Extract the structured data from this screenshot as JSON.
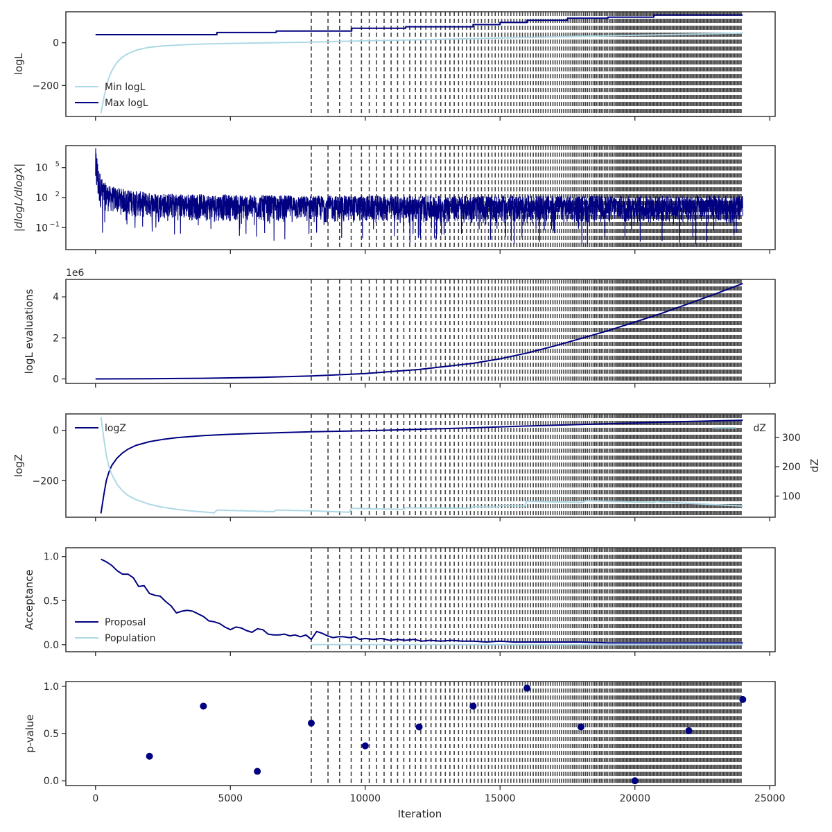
{
  "colors": {
    "dark": "#000080",
    "light": "#add8e6",
    "axis": "#262626",
    "vline": "#404040"
  },
  "chart_data": {
    "type": "line",
    "xlabel": "Iteration",
    "xlim": [
      -1100,
      25200
    ],
    "x_ticks": [
      0,
      5000,
      10000,
      15000,
      20000,
      25000
    ],
    "x_tick_labels": [
      "0",
      "5000",
      "10000",
      "15000",
      "20000",
      "25000"
    ],
    "dashed_vertical_lines": {
      "note": "",
      "positions": [
        8000,
        8620,
        9050,
        9480,
        9860,
        10150,
        10420,
        10700,
        10960,
        11200,
        11430,
        11650,
        11860,
        12060,
        12250,
        12440,
        12620,
        12800,
        12970,
        13140,
        13300,
        13460,
        13610,
        13760,
        13900,
        14040,
        14180,
        14310,
        14440,
        14570,
        14700,
        14820,
        14940,
        15060,
        15180,
        15290,
        15400,
        15510,
        15620,
        15730,
        15830,
        15930,
        16030,
        16130,
        16230,
        16330,
        16420,
        16510,
        16600,
        16690,
        16780,
        16870,
        16960,
        17040,
        17120,
        17200,
        17280,
        17360,
        17440,
        17520,
        17600,
        17680,
        17750,
        17820,
        17890,
        17960,
        18030,
        18100,
        18170,
        18240,
        18310,
        18380,
        18450,
        18510,
        18570,
        18630,
        18690,
        18750,
        18810,
        18870,
        18930,
        18990,
        19050,
        19110,
        19170,
        19230,
        19290,
        19340,
        19390,
        19440,
        19490,
        19540,
        19590,
        19640,
        19690,
        19740,
        19790,
        19840,
        19890,
        19940,
        19990,
        20040,
        20090,
        20140,
        20190,
        20240,
        20290,
        20340,
        20390,
        20440,
        20490,
        20540,
        20590,
        20640,
        20690,
        20740,
        20790,
        20840,
        20890,
        20940,
        20990,
        21040,
        21090,
        21140,
        21190,
        21240,
        21290,
        21340,
        21390,
        21440,
        21490,
        21540,
        21590,
        21640,
        21690,
        21740,
        21790,
        21840,
        21890,
        21940,
        21990,
        22040,
        22090,
        22140,
        22190,
        22240,
        22290,
        22340,
        22390,
        22440,
        22490,
        22540,
        22590,
        22640,
        22690,
        22740,
        22790,
        22840,
        22890,
        22940,
        22990,
        23040,
        23090,
        23140,
        23190,
        23240,
        23290,
        23340,
        23390,
        23440,
        23490,
        23540,
        23590,
        23640,
        23690,
        23740,
        23790,
        23840,
        23890,
        23940
      ]
    },
    "panels": [
      {
        "id": "logl",
        "ylabel": "logL",
        "ylim": [
          -345,
          145
        ],
        "y_ticks": [
          -200,
          0
        ],
        "y_tick_labels": [
          "−200",
          "0"
        ],
        "legend": {
          "placement": "lower-left",
          "entries": [
            {
              "label": "Min logL",
              "color": "light"
            },
            {
              "label": "Max logL",
              "color": "dark"
            }
          ]
        },
        "series": [
          {
            "name": "Min logL",
            "color": "light",
            "step": false,
            "x": [
              200,
              300,
              400,
              500,
              600,
              700,
              800,
              900,
              1000,
              1200,
              1400,
              1600,
              1800,
              2000,
              2500,
              3000,
              3500,
              4000,
              5000,
              6000,
              7000,
              8000,
              9000,
              10000,
              12000,
              14000,
              16000,
              18000,
              20000,
              22000,
              24000
            ],
            "y": [
              -330,
              -262,
              -205,
              -162,
              -132,
              -110,
              -92,
              -78,
              -67,
              -51,
              -40,
              -32,
              -26,
              -21,
              -15,
              -11,
              -8,
              -6,
              -3,
              -1,
              1,
              3,
              6,
              9,
              14,
              19,
              25,
              30,
              35,
              40,
              45
            ]
          },
          {
            "name": "Max logL",
            "color": "dark",
            "step": true,
            "x": [
              0,
              4500,
              4500,
              6700,
              6700,
              9500,
              9500,
              11500,
              11500,
              14000,
              14000,
              15000,
              15000,
              16000,
              16000,
              17500,
              17500,
              19000,
              19000,
              20700,
              20700,
              24000
            ],
            "y": [
              38,
              38,
              48,
              48,
              55,
              55,
              68,
              68,
              75,
              75,
              85,
              85,
              95,
              95,
              105,
              105,
              115,
              115,
              120,
              120,
              130,
              130
            ]
          }
        ]
      },
      {
        "id": "dlogl",
        "ylabel": "|dlogL/dlogX|",
        "ylim_log10": [
          -3.2,
          7.2
        ],
        "y_ticks_log10": [
          -1,
          2,
          5
        ],
        "y_tick_labels": [
          {
            "base": "10",
            "exp": "−1"
          },
          {
            "base": "10",
            "exp": "2"
          },
          {
            "base": "10",
            "exp": "5"
          }
        ],
        "series": [
          {
            "name": "",
            "color": "dark",
            "envelope": {
              "note": "",
              "x": [
                0,
                50,
                100,
                200,
                300,
                500,
                800,
                1200,
                2000,
                3000,
                5000,
                8000,
                12000,
                16000,
                20000,
                24000
              ],
              "upper_log10": [
                7.0,
                6.6,
                5.2,
                4.2,
                3.6,
                3.2,
                3.0,
                2.8,
                2.5,
                2.4,
                2.3,
                2.2,
                2.2,
                2.2,
                2.2,
                2.2
              ],
              "lower_log10": [
                2.0,
                1.5,
                1.0,
                0.9,
                0.7,
                0.5,
                0.3,
                0.1,
                -0.1,
                -0.3,
                -0.4,
                -0.5,
                -0.6,
                -0.6,
                -0.6,
                -0.6
              ],
              "min_spike_log10": -2.8
            }
          }
        ]
      },
      {
        "id": "evals",
        "ylabel": "logL evaluations",
        "offset_text": "1e6",
        "ylim": [
          -0.22,
          4.85
        ],
        "y_ticks": [
          0,
          2,
          4
        ],
        "y_tick_labels": [
          "0",
          "2",
          "4"
        ],
        "series": [
          {
            "name": "",
            "color": "dark",
            "x": [
              0,
              2000,
              4000,
              6000,
              8000,
              10000,
              12000,
              14000,
              15000,
              16000,
              17000,
              18000,
              19000,
              20000,
              21000,
              22000,
              23000,
              24000
            ],
            "y": [
              0.0,
              0.01,
              0.03,
              0.07,
              0.14,
              0.26,
              0.46,
              0.76,
              0.98,
              1.26,
              1.6,
              1.97,
              2.35,
              2.77,
              3.2,
              3.67,
              4.15,
              4.65
            ]
          }
        ]
      },
      {
        "id": "logz",
        "ylabel": "logZ",
        "ylim": [
          -345,
          65
        ],
        "y_ticks": [
          -200,
          0
        ],
        "y_tick_labels": [
          "−200",
          "0"
        ],
        "ylabel_right": "dZ",
        "ylim_right": [
          28,
          380
        ],
        "y_ticks_right": [
          100,
          200,
          300
        ],
        "y_tick_labels_right": [
          "100",
          "200",
          "300"
        ],
        "legend_left": {
          "placement": "upper-left",
          "entries": [
            {
              "label": "logZ",
              "color": "dark"
            }
          ]
        },
        "legend_right": {
          "placement": "upper-right",
          "entries": [
            {
              "label": "dZ",
              "color": "light"
            }
          ]
        },
        "series": [
          {
            "name": "logZ",
            "color": "dark",
            "axis": "left",
            "x": [
              200,
              300,
              400,
              500,
              600,
              800,
              1000,
              1200,
              1500,
              2000,
              2500,
              3000,
              4000,
              5000,
              6000,
              7000,
              8000,
              10000,
              12000,
              14000,
              16000,
              18000,
              20000,
              22000,
              24000
            ],
            "y": [
              -330,
              -260,
              -200,
              -165,
              -140,
              -110,
              -90,
              -75,
              -60,
              -45,
              -36,
              -29,
              -21,
              -16,
              -12,
              -9,
              -6,
              -2,
              4,
              10,
              17,
              23,
              29,
              35,
              40
            ]
          },
          {
            "name": "dZ",
            "color": "light",
            "axis": "right",
            "x": [
              200,
              300,
              400,
              500,
              600,
              800,
              1000,
              1200,
              1500,
              2000,
              2500,
              3000,
              3500,
              4000,
              4400,
              4500,
              4600,
              6600,
              6700,
              6800,
              8000,
              9400,
              9500,
              9600,
              11400,
              11500,
              11600,
              13900,
              14000,
              14100,
              14900,
              15000,
              15100,
              15900,
              16000,
              16100,
              18000,
              18200,
              19900,
              20000,
              20100,
              20700,
              20800,
              21000,
              24000
            ],
            "y": [
              370,
              300,
              240,
              200,
              175,
              140,
              118,
              102,
              88,
              72,
              62,
              55,
              50,
              46,
              43,
              52,
              52,
              47,
              52,
              52,
              50,
              45,
              58,
              58,
              55,
              60,
              60,
              58,
              64,
              64,
              62,
              68,
              68,
              66,
              82,
              82,
              78,
              84,
              80,
              78,
              80,
              78,
              82,
              80,
              66
            ]
          }
        ]
      },
      {
        "id": "acceptance",
        "ylabel": "Acceptance",
        "ylim": [
          -0.08,
          1.1
        ],
        "y_ticks": [
          0,
          0.5,
          1
        ],
        "y_tick_labels": [
          "0.0",
          "0.5",
          "1.0"
        ],
        "legend": {
          "placement": "lower-left",
          "entries": [
            {
              "label": "Proposal",
              "color": "dark"
            },
            {
              "label": "Population",
              "color": "light"
            }
          ]
        },
        "series": [
          {
            "name": "Proposal",
            "color": "dark",
            "x": [
              200,
              400,
              600,
              800,
              1000,
              1200,
              1400,
              1600,
              1800,
              2000,
              2200,
              2400,
              2600,
              2800,
              3000,
              3200,
              3400,
              3600,
              3800,
              4000,
              4200,
              4400,
              4600,
              4800,
              5000,
              5200,
              5400,
              5600,
              5800,
              6000,
              6200,
              6400,
              6600,
              6800,
              7000,
              7200,
              7400,
              7600,
              7800,
              8000,
              8200,
              8400,
              8600,
              8800,
              9000,
              9200,
              9400,
              9600,
              9800,
              10000,
              10300,
              10600,
              10900,
              11200,
              11500,
              11800,
              12100,
              12400,
              12800,
              13200,
              13600,
              14000,
              14500,
              15000,
              15500,
              16000,
              17000,
              18000,
              19000,
              20000,
              21000,
              22000,
              23000,
              24000
            ],
            "y": [
              0.97,
              0.94,
              0.9,
              0.84,
              0.8,
              0.8,
              0.76,
              0.66,
              0.67,
              0.58,
              0.56,
              0.55,
              0.49,
              0.44,
              0.36,
              0.38,
              0.39,
              0.38,
              0.35,
              0.32,
              0.27,
              0.26,
              0.24,
              0.2,
              0.17,
              0.2,
              0.19,
              0.16,
              0.14,
              0.18,
              0.17,
              0.12,
              0.11,
              0.11,
              0.12,
              0.1,
              0.11,
              0.09,
              0.11,
              0.06,
              0.15,
              0.13,
              0.1,
              0.08,
              0.09,
              0.09,
              0.08,
              0.09,
              0.06,
              0.07,
              0.06,
              0.07,
              0.05,
              0.06,
              0.05,
              0.06,
              0.04,
              0.05,
              0.04,
              0.05,
              0.04,
              0.04,
              0.03,
              0.04,
              0.03,
              0.03,
              0.03,
              0.03,
              0.02,
              0.02,
              0.02,
              0.02,
              0.02,
              0.02
            ]
          },
          {
            "name": "Population",
            "color": "light",
            "x": [
              8000,
              24000
            ],
            "y": [
              0.0,
              0.0
            ]
          }
        ]
      },
      {
        "id": "pvalue",
        "ylabel": "p-value",
        "ylim": [
          -0.05,
          1.05
        ],
        "y_ticks": [
          0,
          0.5,
          1
        ],
        "y_tick_labels": [
          "0.0",
          "0.5",
          "1.0"
        ],
        "series": [
          {
            "name": "",
            "type": "scatter",
            "color": "dark",
            "x": [
              2000,
              4000,
              6000,
              8000,
              10000,
              12000,
              14000,
              16000,
              18000,
              20000,
              22000,
              24000
            ],
            "y": [
              0.26,
              0.79,
              0.1,
              0.61,
              0.37,
              0.57,
              0.79,
              0.98,
              0.57,
              0.0,
              0.53,
              0.86
            ]
          }
        ]
      }
    ]
  }
}
